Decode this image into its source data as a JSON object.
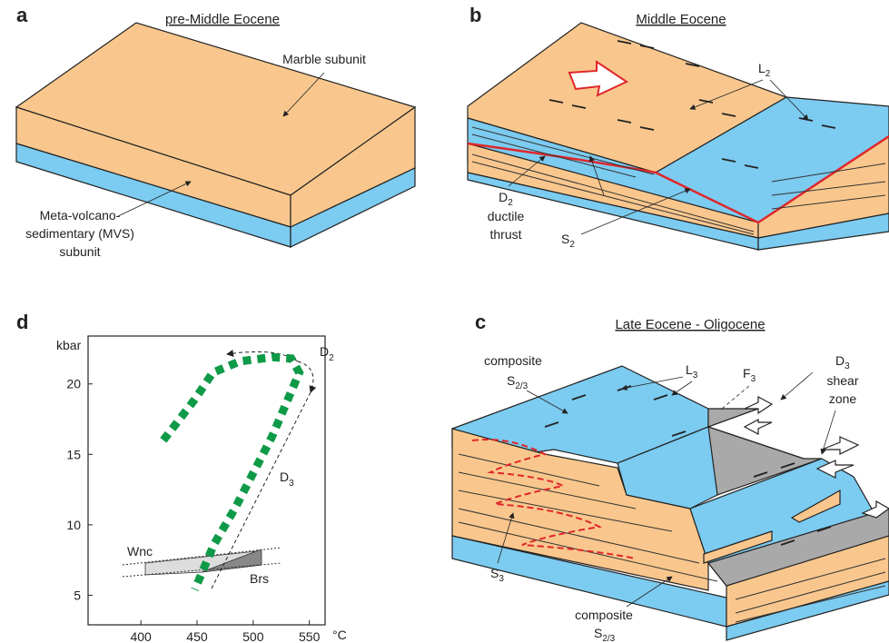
{
  "panels": {
    "a": {
      "letter": "a",
      "title": "pre-Middle Eocene",
      "marble": "Marble subunit",
      "mvs": [
        "Meta-volcano-",
        "sedimentary (MVS)",
        "subunit"
      ]
    },
    "b": {
      "letter": "b",
      "title": "Middle Eocene",
      "L2": {
        "text": "L",
        "sub": "2"
      },
      "D2": {
        "text": "D",
        "sub": "2"
      },
      "thrust": [
        "ductile",
        "thrust"
      ],
      "S2": {
        "text": "S",
        "sub": "2"
      }
    },
    "c": {
      "letter": "c",
      "title": "Late Eocene - Oligocene",
      "composite_top": {
        "text": "composite",
        "symbol": "S",
        "sub": "2/3"
      },
      "L3": {
        "text": "L",
        "sub": "3"
      },
      "F3": {
        "text": "F",
        "sub": "3"
      },
      "D3": {
        "text": "D",
        "sub": "3"
      },
      "shear": [
        "shear",
        "zone"
      ],
      "S3": {
        "text": "S",
        "sub": "3"
      },
      "composite_bottom": {
        "text": "composite",
        "symbol": "S",
        "sub": "2/3"
      }
    }
  },
  "chart_data": {
    "type": "line",
    "letter": "d",
    "ylabel": "kbar",
    "xlabel": "°C",
    "xlim": [
      353,
      564
    ],
    "ylim": [
      2.9,
      23.4
    ],
    "xticks": [
      400,
      450,
      500,
      550
    ],
    "yticks": [
      5,
      10,
      15,
      20
    ],
    "series": [
      {
        "color": "#0f9a48",
        "x": [
          420,
          448,
          464,
          488,
          517,
          534,
          541,
          517,
          484,
          465,
          448
        ],
        "values": [
          16,
          18.9,
          20.8,
          21.6,
          21.9,
          21.8,
          20.8,
          16.3,
          11.2,
          8.6,
          5.4
        ]
      }
    ],
    "annotations": {
      "D2": {
        "text": "D",
        "sub": "2"
      },
      "D3": {
        "text": "D",
        "sub": "3"
      },
      "Wnc": "Wnc",
      "Brs": "Brs"
    }
  }
}
